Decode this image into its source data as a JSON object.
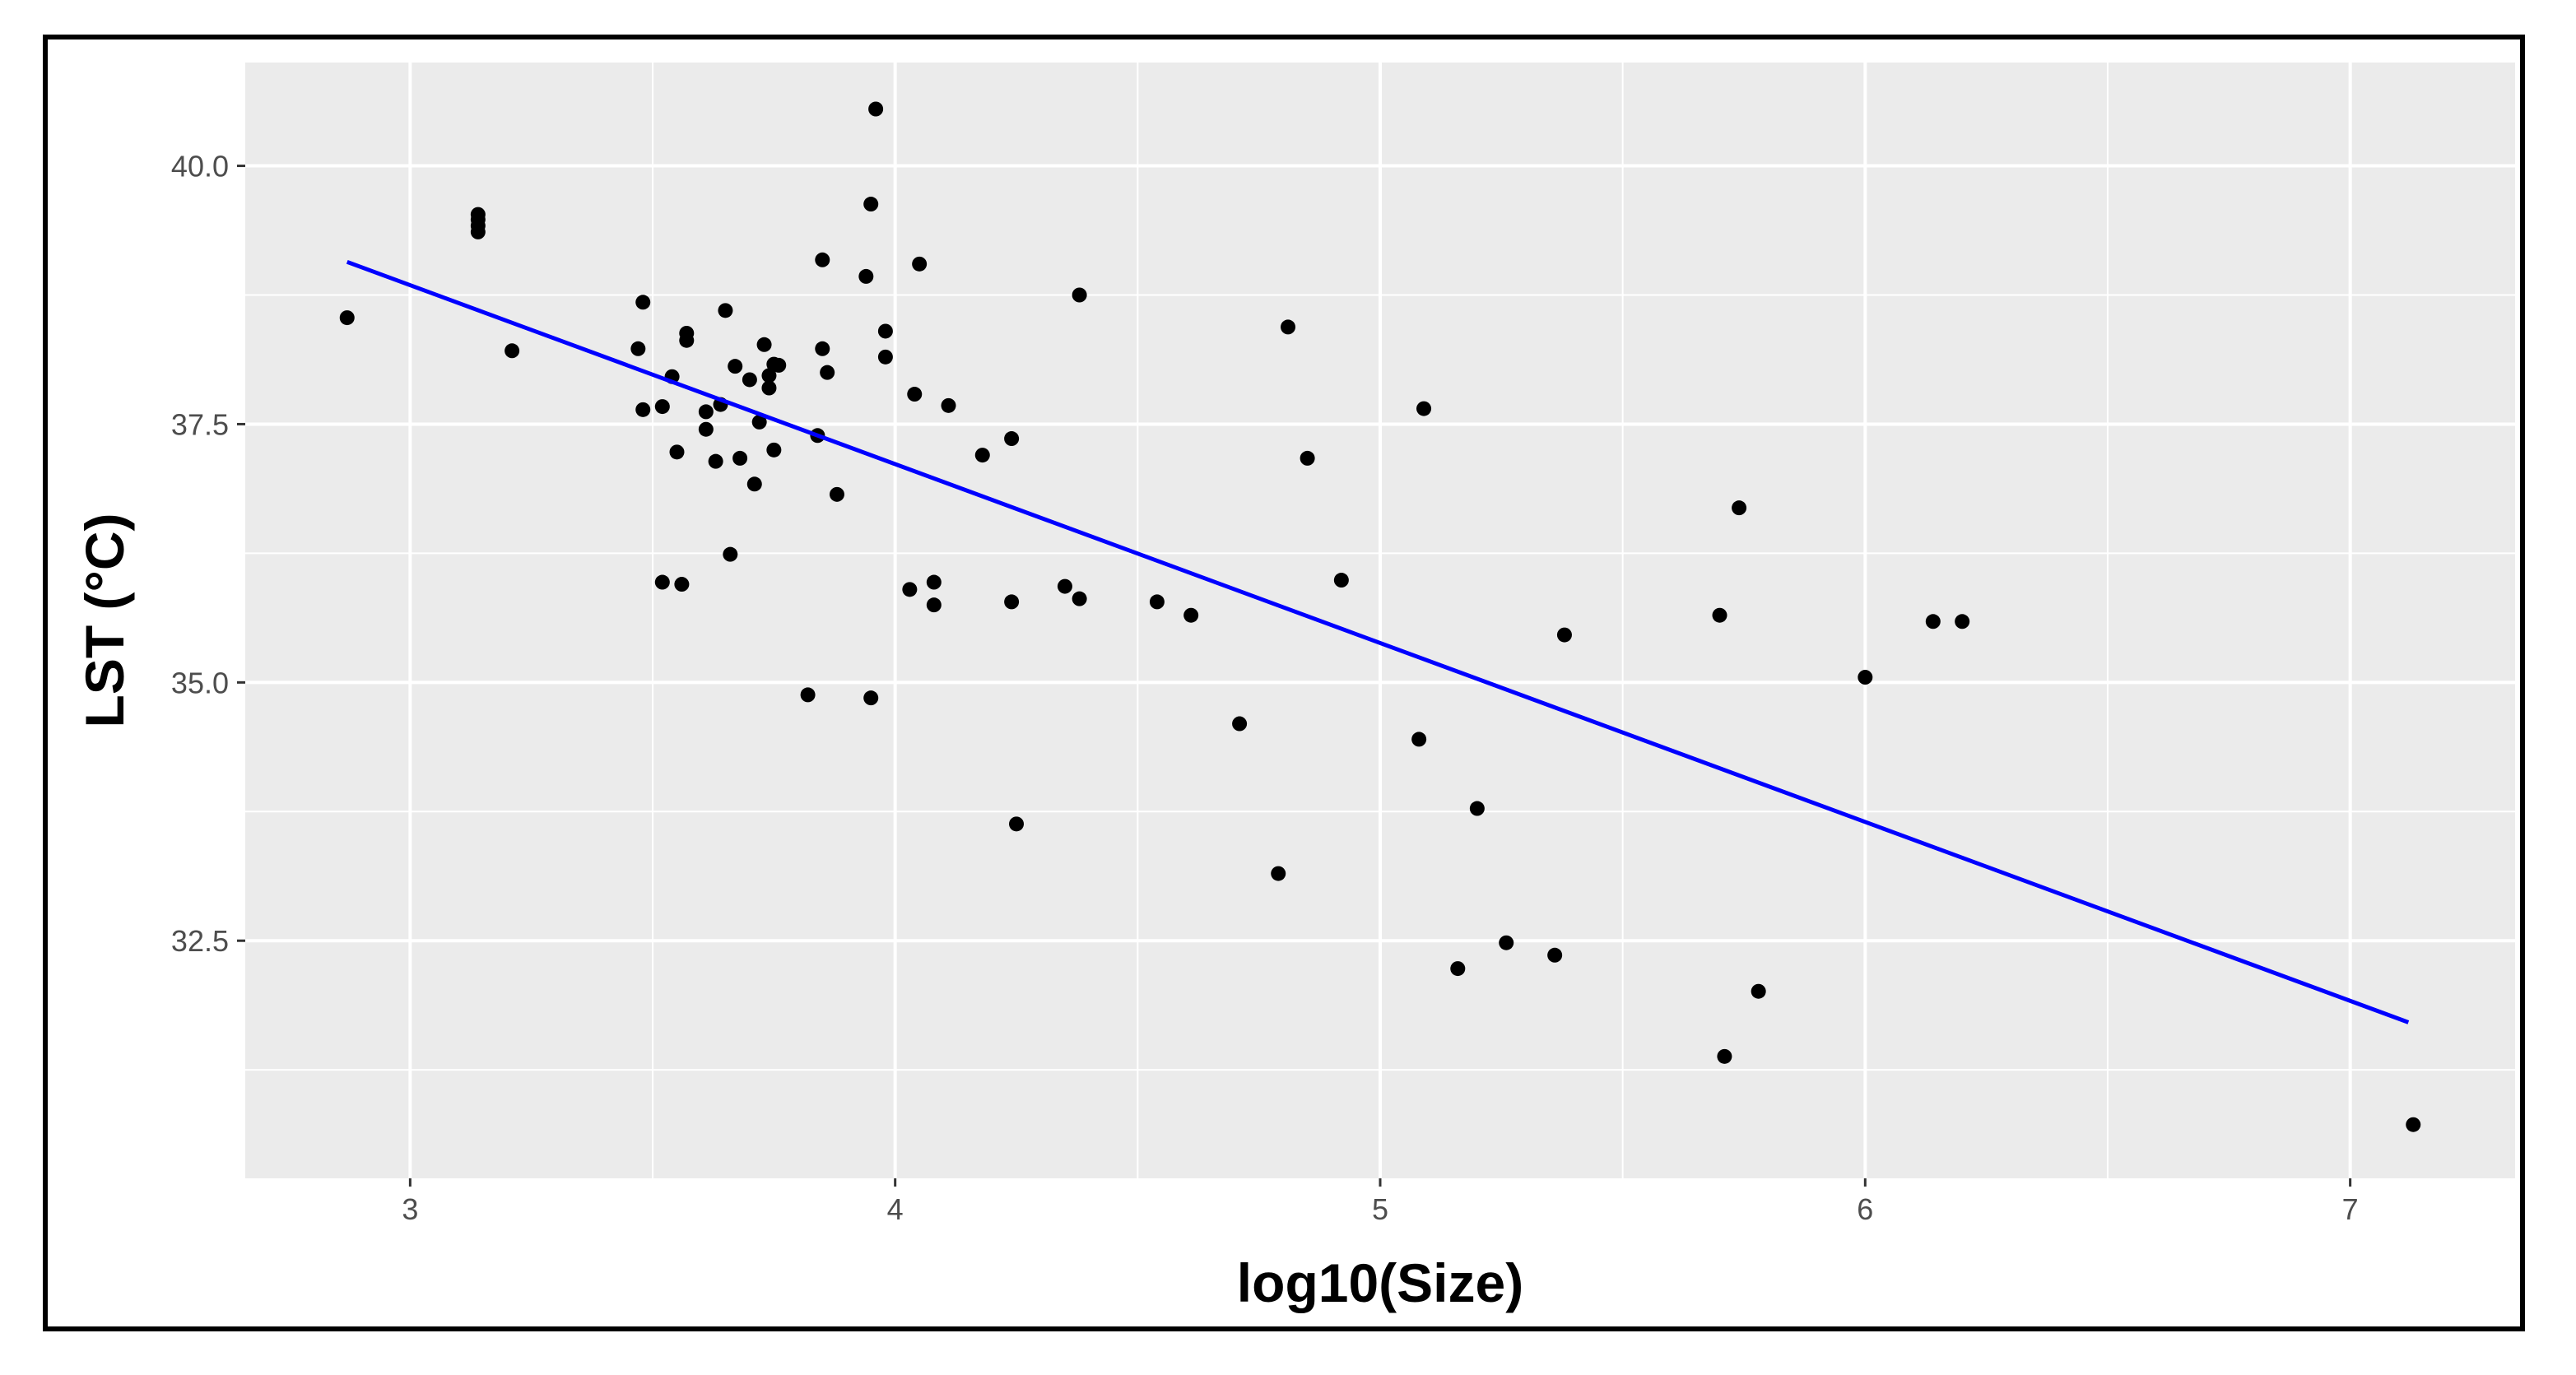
{
  "chart_data": {
    "type": "scatter",
    "xlabel": "log10(Size)",
    "ylabel": "LST (°C)",
    "xlim": [
      2.66,
      7.34
    ],
    "ylim": [
      30.2,
      41.0
    ],
    "x_ticks": [
      3,
      4,
      5,
      6,
      7
    ],
    "x_tick_labels": [
      "3",
      "4",
      "5",
      "6",
      "7"
    ],
    "y_ticks": [
      32.5,
      35.0,
      37.5,
      40.0
    ],
    "y_tick_labels": [
      "32.5",
      "35.0",
      "37.5",
      "40.0"
    ],
    "grid": true,
    "background": "#ebebeb",
    "point_color": "#000000",
    "fit_line": {
      "color": "#0000ff",
      "x": [
        2.87,
        7.12
      ],
      "y": [
        39.07,
        31.71
      ]
    },
    "points": [
      [
        2.87,
        38.53
      ],
      [
        3.14,
        39.53
      ],
      [
        3.14,
        39.48
      ],
      [
        3.14,
        39.42
      ],
      [
        3.14,
        39.36
      ],
      [
        3.21,
        38.21
      ],
      [
        3.47,
        38.23
      ],
      [
        3.48,
        38.68
      ],
      [
        3.48,
        37.64
      ],
      [
        3.52,
        37.67
      ],
      [
        3.52,
        35.97
      ],
      [
        3.54,
        37.96
      ],
      [
        3.55,
        37.23
      ],
      [
        3.56,
        35.95
      ],
      [
        3.57,
        38.31
      ],
      [
        3.57,
        38.38
      ],
      [
        3.61,
        37.62
      ],
      [
        3.61,
        37.45
      ],
      [
        3.63,
        37.14
      ],
      [
        3.64,
        37.69
      ],
      [
        3.65,
        38.6
      ],
      [
        3.66,
        36.24
      ],
      [
        3.67,
        38.06
      ],
      [
        3.68,
        37.17
      ],
      [
        3.7,
        37.93
      ],
      [
        3.71,
        36.92
      ],
      [
        3.72,
        37.52
      ],
      [
        3.73,
        38.27
      ],
      [
        3.74,
        37.85
      ],
      [
        3.74,
        37.97
      ],
      [
        3.75,
        38.08
      ],
      [
        3.75,
        37.25
      ],
      [
        3.76,
        38.07
      ],
      [
        3.82,
        34.88
      ],
      [
        3.84,
        37.39
      ],
      [
        3.85,
        39.09
      ],
      [
        3.85,
        38.23
      ],
      [
        3.86,
        38.0
      ],
      [
        3.88,
        36.82
      ],
      [
        3.94,
        38.93
      ],
      [
        3.95,
        34.85
      ],
      [
        3.95,
        39.63
      ],
      [
        3.96,
        40.55
      ],
      [
        3.98,
        38.4
      ],
      [
        3.98,
        38.15
      ],
      [
        4.03,
        35.9
      ],
      [
        4.04,
        37.79
      ],
      [
        4.05,
        39.05
      ],
      [
        4.08,
        35.97
      ],
      [
        4.08,
        35.75
      ],
      [
        4.11,
        37.68
      ],
      [
        4.18,
        37.2
      ],
      [
        4.24,
        37.36
      ],
      [
        4.24,
        35.78
      ],
      [
        4.25,
        33.63
      ],
      [
        4.35,
        35.93
      ],
      [
        4.38,
        35.81
      ],
      [
        4.38,
        38.75
      ],
      [
        4.54,
        35.78
      ],
      [
        4.61,
        35.65
      ],
      [
        4.71,
        34.6
      ],
      [
        4.79,
        33.15
      ],
      [
        4.81,
        38.44
      ],
      [
        4.85,
        37.17
      ],
      [
        4.92,
        35.99
      ],
      [
        5.08,
        34.45
      ],
      [
        5.09,
        37.65
      ],
      [
        5.16,
        32.23
      ],
      [
        5.2,
        33.78
      ],
      [
        5.26,
        32.48
      ],
      [
        5.36,
        32.36
      ],
      [
        5.38,
        35.46
      ],
      [
        5.7,
        35.65
      ],
      [
        5.71,
        31.38
      ],
      [
        5.74,
        36.69
      ],
      [
        5.78,
        32.01
      ],
      [
        6.0,
        35.05
      ],
      [
        6.14,
        35.59
      ],
      [
        6.2,
        35.59
      ],
      [
        7.13,
        30.72
      ]
    ]
  }
}
